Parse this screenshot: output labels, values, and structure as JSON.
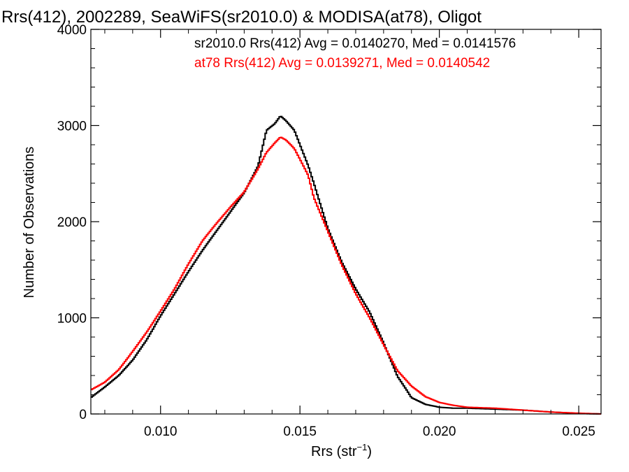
{
  "chart_data": {
    "type": "line",
    "title": "Rrs(412), 2002289, SeaWiFS(sr2010.0) & MODISA(at78), Oligot",
    "xlabel_main": "Rrs (str",
    "xlabel_sup": "−1",
    "xlabel_close": ")",
    "ylabel": "Number of Observations",
    "xlim": [
      0.0075,
      0.0258
    ],
    "ylim": [
      0,
      4000
    ],
    "x_ticks": [
      {
        "value": 0.01,
        "label": "0.010"
      },
      {
        "value": 0.015,
        "label": "0.015"
      },
      {
        "value": 0.02,
        "label": "0.020"
      },
      {
        "value": 0.025,
        "label": "0.025"
      }
    ],
    "y_ticks": [
      {
        "value": 0,
        "label": "0"
      },
      {
        "value": 1000,
        "label": "1000"
      },
      {
        "value": 2000,
        "label": "2000"
      },
      {
        "value": 3000,
        "label": "3000"
      },
      {
        "value": 4000,
        "label": "4000"
      }
    ],
    "legend_position": "top-right",
    "series": [
      {
        "name": "sr2010.0 Rrs(412) Avg = 0.0140270, Med = 0.0141576",
        "color": "#000000",
        "x": [
          0.0075,
          0.008,
          0.0085,
          0.009,
          0.0095,
          0.01,
          0.0105,
          0.011,
          0.0115,
          0.012,
          0.0125,
          0.013,
          0.0135,
          0.0138,
          0.0141,
          0.0143,
          0.0145,
          0.0148,
          0.015,
          0.0153,
          0.0155,
          0.016,
          0.0165,
          0.017,
          0.0175,
          0.018,
          0.0185,
          0.0188,
          0.019,
          0.0195,
          0.02,
          0.0205,
          0.021,
          0.022,
          0.023,
          0.024,
          0.025,
          0.0258
        ],
        "y": [
          170,
          280,
          400,
          560,
          770,
          1020,
          1250,
          1480,
          1700,
          1900,
          2100,
          2300,
          2580,
          2950,
          3020,
          3100,
          3050,
          2950,
          2800,
          2580,
          2400,
          1930,
          1580,
          1300,
          1060,
          740,
          390,
          260,
          170,
          100,
          70,
          60,
          60,
          50,
          40,
          20,
          5,
          0
        ]
      },
      {
        "name": "at78 Rrs(412) Avg = 0.0139271, Med = 0.0140542",
        "color": "#ff0000",
        "x": [
          0.0075,
          0.008,
          0.0085,
          0.009,
          0.0095,
          0.01,
          0.0105,
          0.011,
          0.0115,
          0.012,
          0.0125,
          0.013,
          0.0135,
          0.0138,
          0.0141,
          0.0143,
          0.0145,
          0.0148,
          0.015,
          0.0153,
          0.0155,
          0.016,
          0.0165,
          0.017,
          0.0175,
          0.018,
          0.0185,
          0.019,
          0.0195,
          0.02,
          0.0205,
          0.021,
          0.022,
          0.023,
          0.024,
          0.025,
          0.0258
        ],
        "y": [
          250,
          330,
          460,
          650,
          850,
          1070,
          1300,
          1560,
          1800,
          1980,
          2150,
          2310,
          2550,
          2720,
          2820,
          2880,
          2850,
          2760,
          2650,
          2480,
          2250,
          1900,
          1550,
          1250,
          1000,
          720,
          450,
          290,
          180,
          120,
          90,
          70,
          60,
          40,
          20,
          8,
          0
        ]
      }
    ]
  }
}
